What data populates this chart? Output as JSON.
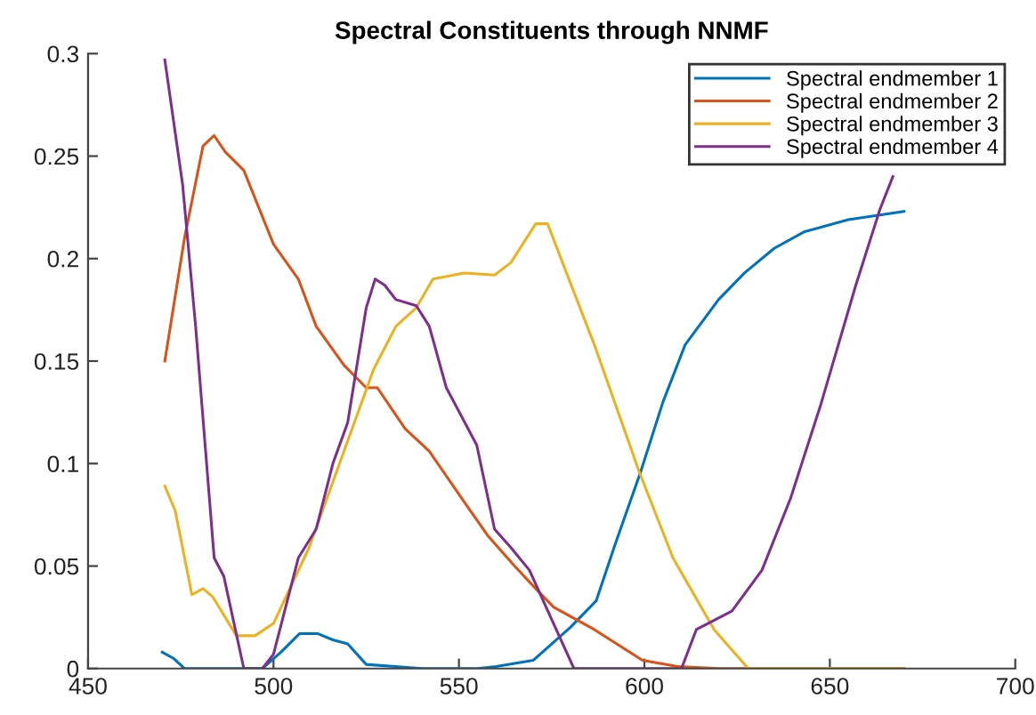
{
  "chart_data": {
    "type": "line",
    "title": "Spectral Constituents through NNMF",
    "xlim": [
      450,
      700
    ],
    "ylim": [
      0,
      0.3
    ],
    "xticks": [
      450,
      500,
      550,
      600,
      650,
      700
    ],
    "yticks": [
      0,
      0.05,
      0.1,
      0.15,
      0.2,
      0.25,
      0.3
    ],
    "grid": false,
    "legend": "top right",
    "marker": "none",
    "line_style": "solid",
    "series": [
      {
        "name": "Spectral endmember 1",
        "color": "#0072bd",
        "x": [
          470,
          473,
          476,
          490,
          497,
          502,
          507,
          512,
          516,
          520,
          525,
          540,
          555,
          560,
          570,
          580,
          587,
          592,
          599,
          605,
          611,
          620,
          627,
          635,
          643,
          655,
          670
        ],
        "values": [
          0.008,
          0.005,
          0,
          0,
          0,
          0.008,
          0.017,
          0.017,
          0.014,
          0.012,
          0.002,
          0,
          0,
          0.001,
          0.004,
          0.02,
          0.033,
          0.06,
          0.096,
          0.13,
          0.158,
          0.18,
          0.193,
          0.205,
          0.213,
          0.219,
          0.223
        ]
      },
      {
        "name": "Spectral endmember 2",
        "color": "#d95319",
        "x": [
          470.7,
          476,
          481,
          484,
          487,
          492,
          500,
          506.7,
          511.5,
          519,
          525,
          528,
          535.5,
          542,
          550,
          557.7,
          565,
          570.7,
          575.5,
          586.5,
          599.5,
          609,
          620,
          630,
          670
        ],
        "values": [
          0.15,
          0.21,
          0.255,
          0.26,
          0.252,
          0.243,
          0.207,
          0.19,
          0.167,
          0.148,
          0.137,
          0.137,
          0.117,
          0.106,
          0.085,
          0.065,
          0.05,
          0.039,
          0.03,
          0.019,
          0.004,
          0.001,
          0,
          0,
          0
        ]
      },
      {
        "name": "Spectral endmember 3",
        "color": "#edb120",
        "x": [
          470.7,
          473.5,
          478,
          481,
          483.6,
          490,
          495,
          500,
          509.6,
          519,
          527,
          533,
          538.5,
          543,
          551.4,
          559.6,
          564,
          570.7,
          573.9,
          579,
          586.5,
          598.6,
          607.7,
          618.8,
          628,
          640,
          670
        ],
        "values": [
          0.089,
          0.077,
          0.036,
          0.039,
          0.035,
          0.016,
          0.016,
          0.022,
          0.059,
          0.106,
          0.146,
          0.167,
          0.176,
          0.19,
          0.193,
          0.192,
          0.198,
          0.217,
          0.217,
          0.193,
          0.158,
          0.096,
          0.054,
          0.019,
          0,
          0,
          0
        ]
      },
      {
        "name": "Spectral endmember 4",
        "color": "#7e2f8e",
        "x": [
          470.7,
          475.5,
          479,
          484,
          486.6,
          492,
          497,
          500,
          506.7,
          511.5,
          516,
          520,
          525,
          527.4,
          530,
          533,
          538.5,
          542,
          546.6,
          554.8,
          559.6,
          564,
          569,
          575.5,
          581,
          595,
          610,
          614,
          623.6,
          631.7,
          639.4,
          647.6,
          657,
          663.5,
          667
        ],
        "values": [
          0.297,
          0.236,
          0.167,
          0.054,
          0.045,
          0,
          0,
          0.007,
          0.054,
          0.068,
          0.1,
          0.12,
          0.176,
          0.19,
          0.187,
          0.18,
          0.177,
          0.167,
          0.137,
          0.109,
          0.068,
          0.059,
          0.048,
          0.022,
          0,
          0,
          0,
          0.019,
          0.028,
          0.048,
          0.083,
          0.129,
          0.187,
          0.224,
          0.24
        ]
      }
    ]
  }
}
